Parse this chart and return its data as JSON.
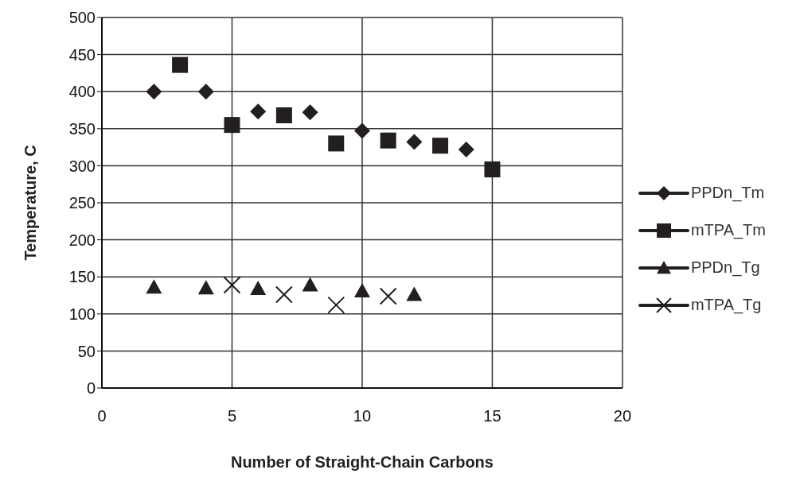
{
  "chart_data": {
    "type": "scatter",
    "xlabel": "Number of Straight-Chain  Carbons",
    "ylabel": "Temperature, C",
    "xlim": [
      0,
      20
    ],
    "xticks": [
      0,
      5,
      10,
      15,
      20
    ],
    "ylim": [
      0,
      500
    ],
    "yticks": [
      0,
      50,
      100,
      150,
      200,
      250,
      300,
      350,
      400,
      450,
      500
    ],
    "grid": true,
    "legend": "right",
    "series": [
      {
        "name": "PPDn_Tm",
        "color": "#231f20",
        "marker": "diamond",
        "x": [
          2,
          4,
          6,
          8,
          10,
          12,
          14
        ],
        "values": [
          400,
          400,
          373,
          372,
          347,
          332,
          322
        ]
      },
      {
        "name": "mTPA_Tm",
        "color": "#231f20",
        "marker": "square",
        "x": [
          3,
          5,
          7,
          9,
          11,
          13,
          15
        ],
        "values": [
          436,
          355,
          368,
          330,
          334,
          327,
          295
        ]
      },
      {
        "name": "PPDn_Tg",
        "color": "#231f20",
        "marker": "triangle",
        "x": [
          2,
          4,
          6,
          8,
          10,
          12
        ],
        "values": [
          136,
          135,
          134,
          139,
          131,
          126
        ]
      },
      {
        "name": "mTPA_Tg",
        "color": "#231f20",
        "marker": "cross",
        "x": [
          5,
          7,
          9,
          11
        ],
        "values": [
          139,
          126,
          112,
          124
        ]
      }
    ]
  }
}
